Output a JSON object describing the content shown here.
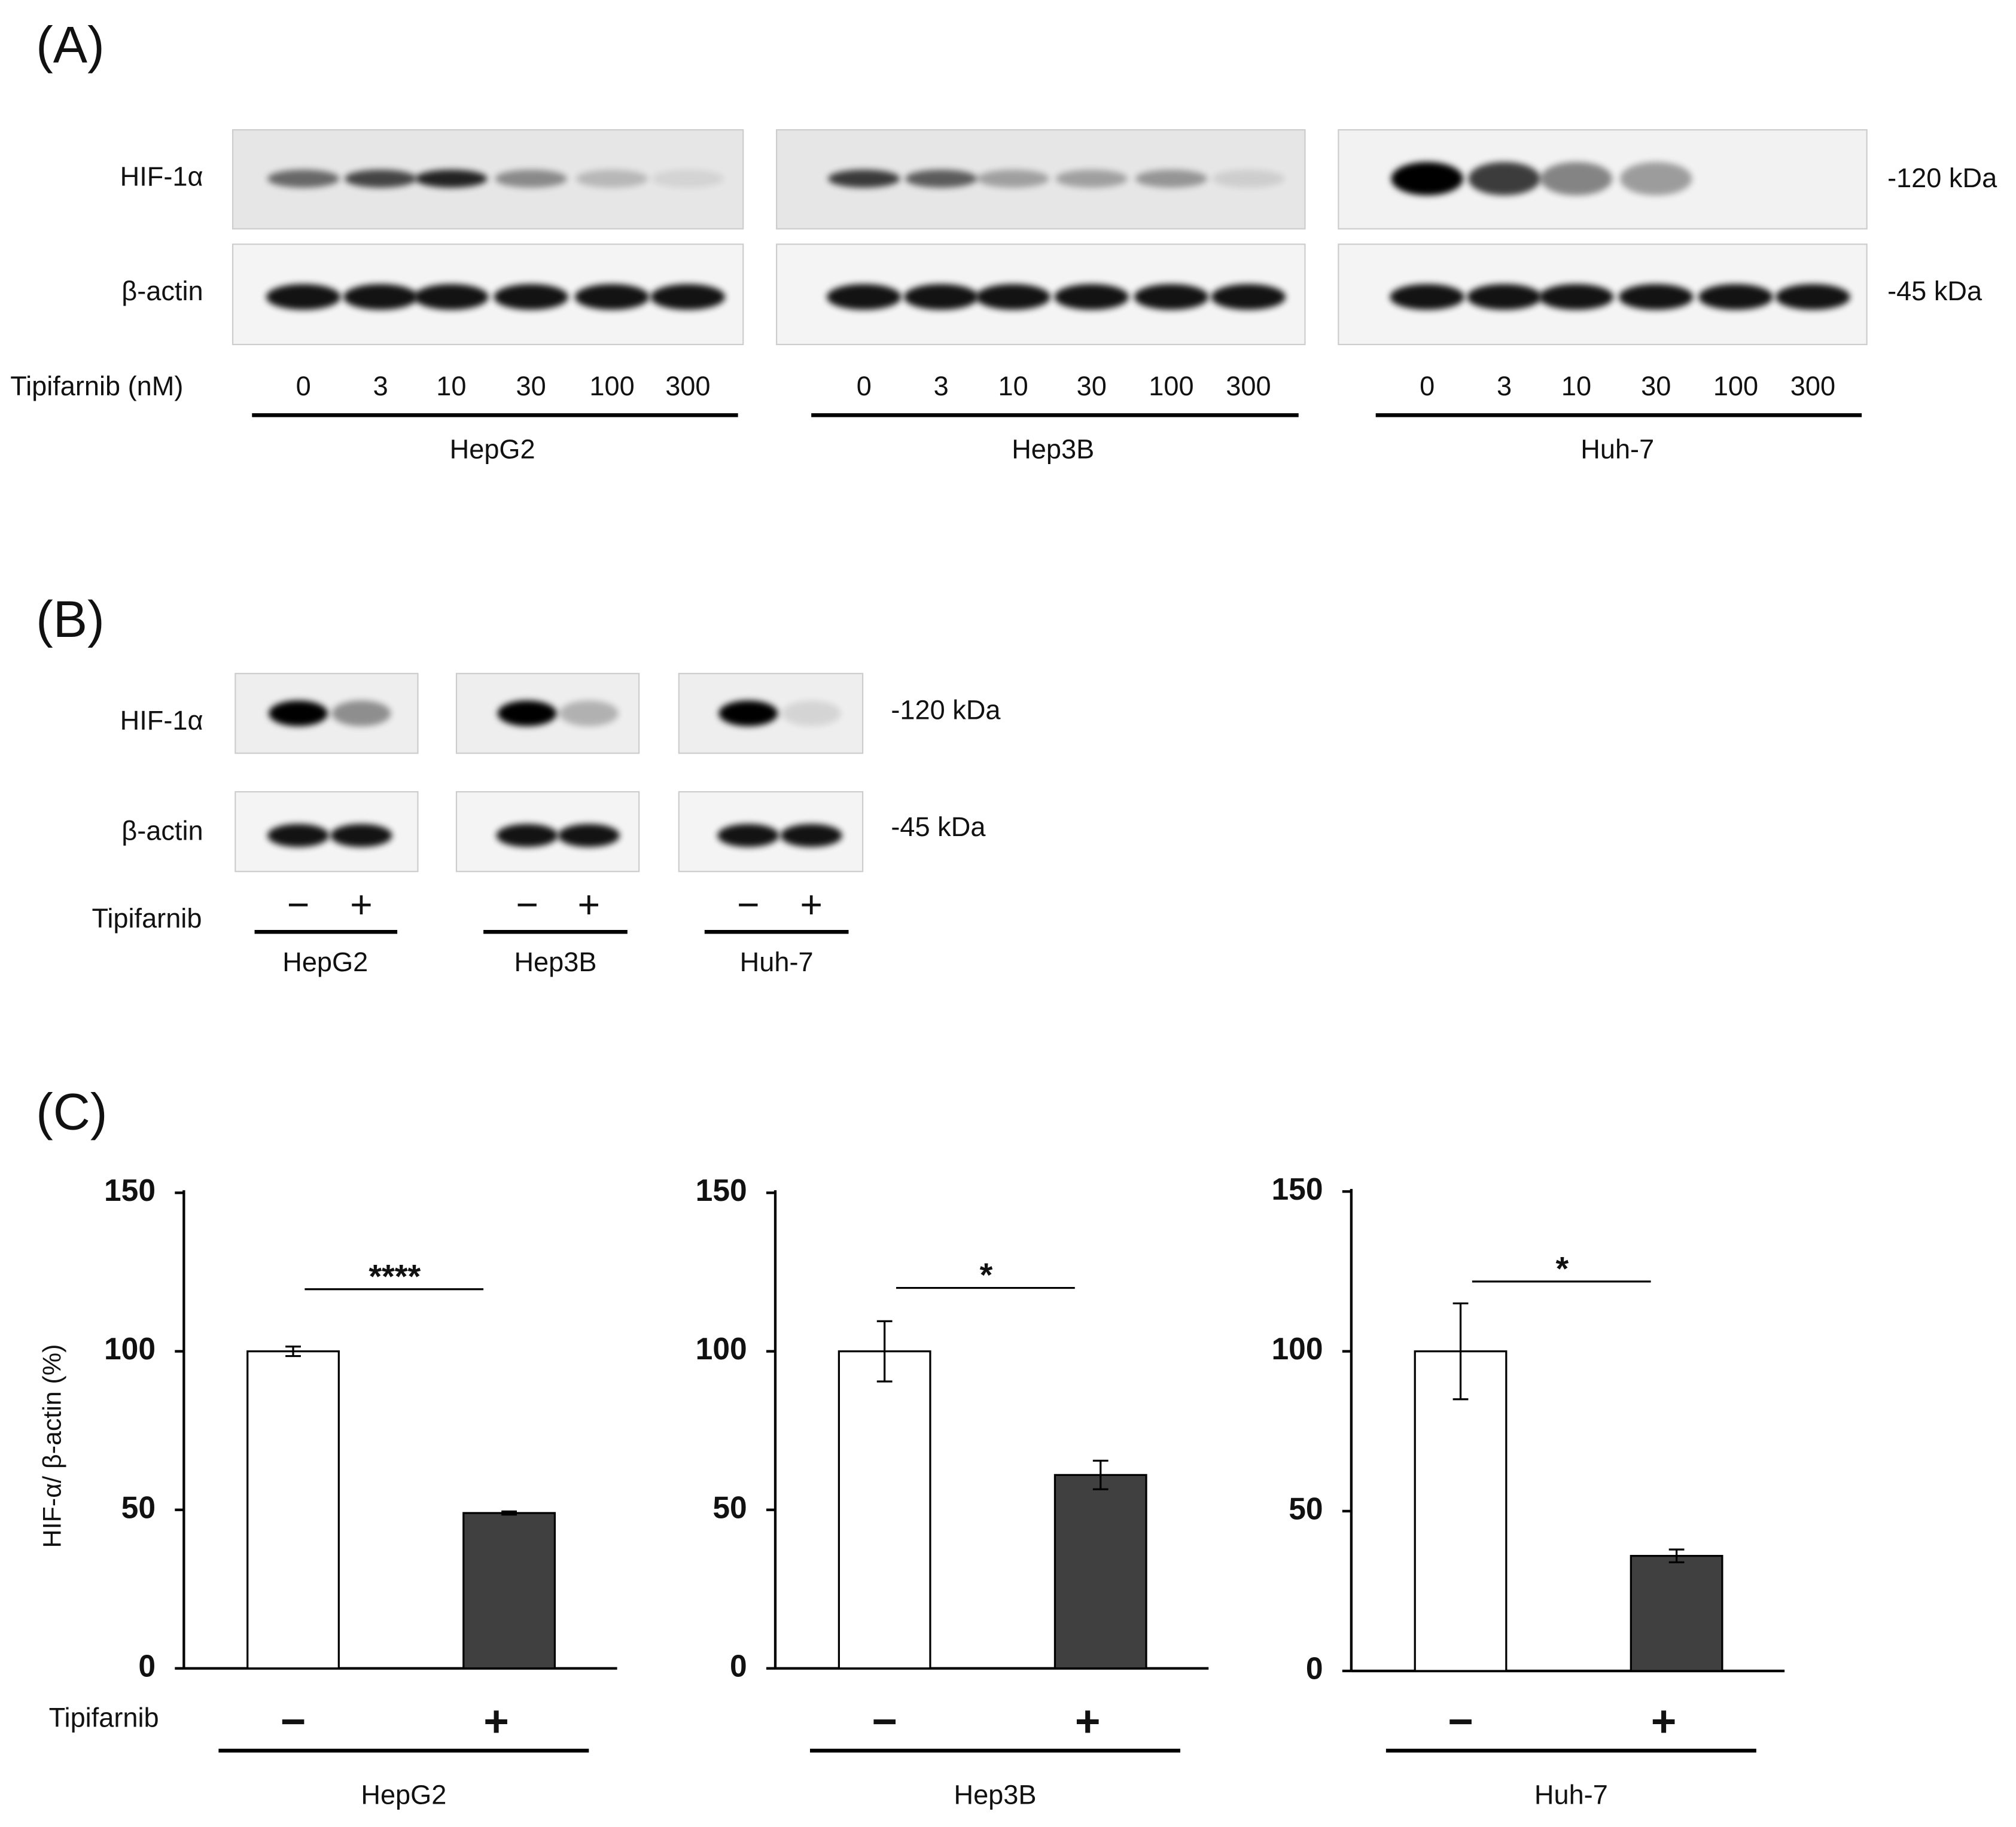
{
  "panel_a": {
    "label": "(A)",
    "rows": [
      "HIF-1α",
      "β-actin"
    ],
    "mw": [
      "-120 kDa",
      "-45 kDa"
    ],
    "treatment_label": "Tipifarnib (nM)",
    "doses": [
      "0",
      "3",
      "10",
      "30",
      "100",
      "300"
    ],
    "cell_lines": [
      "HepG2",
      "Hep3B",
      "Huh-7"
    ]
  },
  "panel_b": {
    "label": "(B)",
    "rows": [
      "HIF-1α",
      "β-actin"
    ],
    "mw": [
      "-120 kDa",
      "-45 kDa"
    ],
    "treatment_label": "Tipifarnib",
    "conditions": [
      "−",
      "+"
    ],
    "cell_lines": [
      "HepG2",
      "Hep3B",
      "Huh-7"
    ]
  },
  "panel_c": {
    "label": "(C)",
    "ylabel": "HIF-α/ β-actin (%)",
    "treatment_label": "Tipifarnib"
  },
  "chart_data": [
    {
      "type": "bar",
      "cell_line": "HepG2",
      "categories": [
        "−",
        "+"
      ],
      "values": [
        100,
        49
      ],
      "errors": [
        1.5,
        0.5
      ],
      "colors": [
        "#ffffff",
        "#404040"
      ],
      "ylim": [
        0,
        150
      ],
      "yticks": [
        0,
        50,
        100,
        150
      ],
      "significance": "****"
    },
    {
      "type": "bar",
      "cell_line": "Hep3B",
      "categories": [
        "−",
        "+"
      ],
      "values": [
        100,
        61
      ],
      "errors": [
        9.5,
        4.5
      ],
      "colors": [
        "#ffffff",
        "#404040"
      ],
      "ylim": [
        0,
        150
      ],
      "yticks": [
        0,
        50,
        100,
        150
      ],
      "significance": "*"
    },
    {
      "type": "bar",
      "cell_line": "Huh-7",
      "categories": [
        "−",
        "+"
      ],
      "values": [
        100,
        36
      ],
      "errors": [
        15,
        2
      ],
      "colors": [
        "#ffffff",
        "#404040"
      ],
      "ylim": [
        0,
        150
      ],
      "yticks": [
        0,
        50,
        100,
        150
      ],
      "significance": "*"
    }
  ]
}
